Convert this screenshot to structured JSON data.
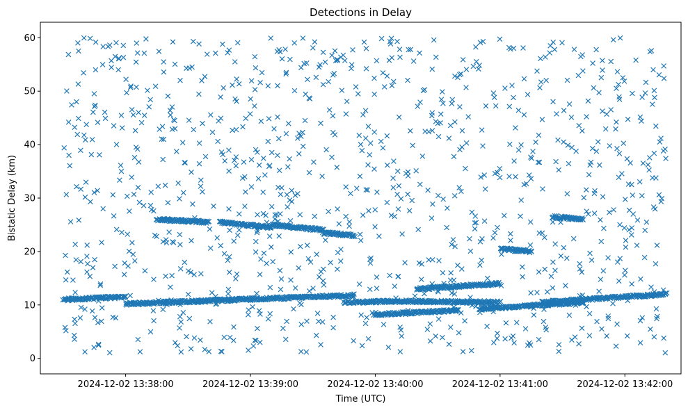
{
  "chart_data": {
    "type": "scatter",
    "title": "Detections in Delay",
    "xlabel": "Time (UTC)",
    "ylabel": "Bistatic Delay (km)",
    "x_axis_type": "datetime",
    "xlim": [
      "2024-12-02 13:37:19",
      "2024-12-02 13:42:27"
    ],
    "ylim": [
      -2.9,
      62.9
    ],
    "x_ticks": [
      "2024-12-02 13:38:00",
      "2024-12-02 13:39:00",
      "2024-12-02 13:40:00",
      "2024-12-02 13:41:00",
      "2024-12-02 13:42:00"
    ],
    "y_ticks": [
      0,
      10,
      20,
      30,
      40,
      50,
      60
    ],
    "grid": false,
    "legend": "none",
    "marker": "x",
    "color": "#1f77b4",
    "series": [
      {
        "tracks": [
          {
            "t0": "2024-12-02 13:37:30",
            "t1": "2024-12-02 13:38:00",
            "y0": 11.0,
            "y1": 11.5
          },
          {
            "t0": "2024-12-02 13:38:00",
            "t1": "2024-12-02 13:39:50",
            "y0": 10.2,
            "y1": 11.8
          },
          {
            "t0": "2024-12-02 13:39:45",
            "t1": "2024-12-02 13:40:10",
            "y0": 10.5,
            "y1": 10.7
          },
          {
            "t0": "2024-12-02 13:40:10",
            "t1": "2024-12-02 13:41:00",
            "y0": 10.7,
            "y1": 10.5
          },
          {
            "t0": "2024-12-02 13:40:00",
            "t1": "2024-12-02 13:40:40",
            "y0": 8.2,
            "y1": 9.0
          },
          {
            "t0": "2024-12-02 13:40:50",
            "t1": "2024-12-02 13:41:40",
            "y0": 9.2,
            "y1": 10.5
          },
          {
            "t0": "2024-12-02 13:41:20",
            "t1": "2024-12-02 13:42:20",
            "y0": 10.5,
            "y1": 12.0
          },
          {
            "t0": "2024-12-02 13:40:20",
            "t1": "2024-12-02 13:41:00",
            "y0": 13.0,
            "y1": 14.0
          },
          {
            "t0": "2024-12-02 13:38:45",
            "t1": "2024-12-02 13:39:10",
            "y0": 25.5,
            "y1": 24.5
          },
          {
            "t0": "2024-12-02 13:39:10",
            "t1": "2024-12-02 13:39:35",
            "y0": 25.0,
            "y1": 24.0
          },
          {
            "t0": "2024-12-02 13:39:35",
            "t1": "2024-12-02 13:39:50",
            "y0": 23.5,
            "y1": 23.0
          },
          {
            "t0": "2024-12-02 13:41:00",
            "t1": "2024-12-02 13:41:15",
            "y0": 20.5,
            "y1": 20.0
          },
          {
            "t0": "2024-12-02 13:38:15",
            "t1": "2024-12-02 13:38:40",
            "y0": 26.0,
            "y1": 25.5
          },
          {
            "t0": "2024-12-02 13:41:25",
            "t1": "2024-12-02 13:41:40",
            "y0": 26.5,
            "y1": 26.0
          }
        ],
        "scatter_density": "dense uniform noise, 0–60 km, 13:37:30–13:42:20"
      }
    ]
  }
}
